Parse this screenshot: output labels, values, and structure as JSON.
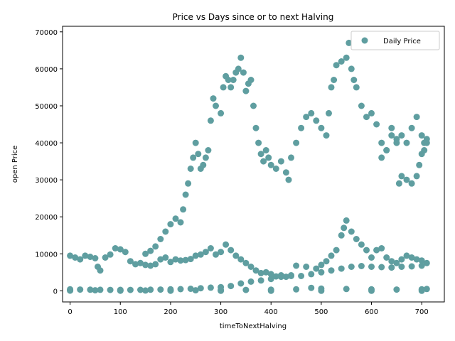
{
  "chart_data": {
    "type": "scatter",
    "title": "Price vs Days since or to next Halving",
    "xlabel": "timeToNextHalving",
    "ylabel": "open Price",
    "xlim": [
      -15,
      745
    ],
    "ylim": [
      -3000,
      71500
    ],
    "xticks": [
      0,
      100,
      200,
      300,
      400,
      500,
      600,
      700
    ],
    "yticks": [
      0,
      10000,
      20000,
      30000,
      40000,
      50000,
      60000,
      70000
    ],
    "grid": false,
    "legend_position": "top-right",
    "colors": {
      "marker": "#5f9ea0"
    },
    "series": [
      {
        "name": "Daily Price",
        "points": [
          [
            0,
            9500
          ],
          [
            10,
            9000
          ],
          [
            20,
            8500
          ],
          [
            30,
            9500
          ],
          [
            40,
            9200
          ],
          [
            50,
            8800
          ],
          [
            55,
            6500
          ],
          [
            60,
            5500
          ],
          [
            70,
            9000
          ],
          [
            80,
            9800
          ],
          [
            90,
            11500
          ],
          [
            100,
            11200
          ],
          [
            110,
            10500
          ],
          [
            120,
            8000
          ],
          [
            130,
            7200
          ],
          [
            140,
            7500
          ],
          [
            150,
            7000
          ],
          [
            160,
            6800
          ],
          [
            170,
            7200
          ],
          [
            180,
            8500
          ],
          [
            190,
            9000
          ],
          [
            200,
            7800
          ],
          [
            210,
            8500
          ],
          [
            220,
            8200
          ],
          [
            230,
            8300
          ],
          [
            240,
            8600
          ],
          [
            250,
            9500
          ],
          [
            260,
            9800
          ],
          [
            270,
            10500
          ],
          [
            280,
            11500
          ],
          [
            290,
            9800
          ],
          [
            300,
            10500
          ],
          [
            310,
            12500
          ],
          [
            320,
            11000
          ],
          [
            330,
            9500
          ],
          [
            340,
            8500
          ],
          [
            350,
            7500
          ],
          [
            360,
            6500
          ],
          [
            370,
            5500
          ],
          [
            380,
            4800
          ],
          [
            390,
            5000
          ],
          [
            400,
            4500
          ],
          [
            410,
            3900
          ],
          [
            420,
            4200
          ],
          [
            430,
            3800
          ],
          [
            440,
            4000
          ],
          [
            0,
            400
          ],
          [
            20,
            350
          ],
          [
            40,
            300
          ],
          [
            60,
            280
          ],
          [
            80,
            250
          ],
          [
            100,
            260
          ],
          [
            120,
            250
          ],
          [
            140,
            270
          ],
          [
            160,
            300
          ],
          [
            180,
            350
          ],
          [
            200,
            400
          ],
          [
            220,
            450
          ],
          [
            240,
            550
          ],
          [
            260,
            700
          ],
          [
            280,
            850
          ],
          [
            300,
            1000
          ],
          [
            320,
            1300
          ],
          [
            340,
            2000
          ],
          [
            360,
            2500
          ],
          [
            380,
            2800
          ],
          [
            400,
            3200
          ],
          [
            420,
            3800
          ],
          [
            440,
            4200
          ],
          [
            460,
            4000
          ],
          [
            480,
            4500
          ],
          [
            500,
            5000
          ],
          [
            520,
            5500
          ],
          [
            540,
            6000
          ],
          [
            560,
            6500
          ],
          [
            580,
            6700
          ],
          [
            600,
            6500
          ],
          [
            620,
            6400
          ],
          [
            640,
            6300
          ],
          [
            660,
            6500
          ],
          [
            680,
            6600
          ],
          [
            700,
            6800
          ],
          [
            0,
            200
          ],
          [
            50,
            150
          ],
          [
            100,
            120
          ],
          [
            150,
            100
          ],
          [
            200,
            110
          ],
          [
            250,
            150
          ],
          [
            300,
            200
          ],
          [
            350,
            250
          ],
          [
            400,
            300
          ],
          [
            450,
            400
          ],
          [
            480,
            800
          ],
          [
            500,
            600
          ],
          [
            550,
            500
          ],
          [
            600,
            400
          ],
          [
            650,
            350
          ],
          [
            700,
            400
          ],
          [
            710,
            500
          ],
          [
            0,
            50
          ],
          [
            100,
            40
          ],
          [
            200,
            30
          ],
          [
            300,
            20
          ],
          [
            400,
            15
          ],
          [
            500,
            10
          ],
          [
            600,
            8
          ],
          [
            700,
            6
          ],
          [
            450,
            6800
          ],
          [
            470,
            6500
          ],
          [
            490,
            6000
          ],
          [
            500,
            7000
          ],
          [
            510,
            8000
          ],
          [
            520,
            9500
          ],
          [
            530,
            11000
          ],
          [
            540,
            15000
          ],
          [
            545,
            17000
          ],
          [
            550,
            19000
          ],
          [
            560,
            16000
          ],
          [
            570,
            14000
          ],
          [
            580,
            12500
          ],
          [
            590,
            11000
          ],
          [
            600,
            9000
          ],
          [
            610,
            11000
          ],
          [
            620,
            11500
          ],
          [
            630,
            9000
          ],
          [
            640,
            8000
          ],
          [
            650,
            7500
          ],
          [
            660,
            8500
          ],
          [
            670,
            9500
          ],
          [
            680,
            9000
          ],
          [
            690,
            8500
          ],
          [
            700,
            8200
          ],
          [
            710,
            7500
          ],
          [
            150,
            10000
          ],
          [
            160,
            10800
          ],
          [
            170,
            12000
          ],
          [
            180,
            14000
          ],
          [
            190,
            16000
          ],
          [
            200,
            18000
          ],
          [
            210,
            19500
          ],
          [
            220,
            18500
          ],
          [
            225,
            22000
          ],
          [
            230,
            26000
          ],
          [
            235,
            29000
          ],
          [
            240,
            33000
          ],
          [
            245,
            36000
          ],
          [
            250,
            40000
          ],
          [
            255,
            37000
          ],
          [
            260,
            33000
          ],
          [
            265,
            34000
          ],
          [
            270,
            36000
          ],
          [
            275,
            38000
          ],
          [
            280,
            46000
          ],
          [
            285,
            52000
          ],
          [
            290,
            50000
          ],
          [
            300,
            48000
          ],
          [
            305,
            55000
          ],
          [
            310,
            58000
          ],
          [
            315,
            57000
          ],
          [
            320,
            55000
          ],
          [
            325,
            57000
          ],
          [
            330,
            59000
          ],
          [
            335,
            60000
          ],
          [
            340,
            63000
          ],
          [
            345,
            59000
          ],
          [
            350,
            54000
          ],
          [
            355,
            56000
          ],
          [
            360,
            57000
          ],
          [
            365,
            50000
          ],
          [
            370,
            44000
          ],
          [
            375,
            40000
          ],
          [
            380,
            37000
          ],
          [
            385,
            35000
          ],
          [
            390,
            38000
          ],
          [
            395,
            36000
          ],
          [
            400,
            34000
          ],
          [
            410,
            33000
          ],
          [
            420,
            35000
          ],
          [
            430,
            32000
          ],
          [
            435,
            30000
          ],
          [
            440,
            36000
          ],
          [
            450,
            40000
          ],
          [
            460,
            44000
          ],
          [
            470,
            47000
          ],
          [
            480,
            48000
          ],
          [
            490,
            46000
          ],
          [
            500,
            44000
          ],
          [
            510,
            42000
          ],
          [
            515,
            48000
          ],
          [
            520,
            55000
          ],
          [
            525,
            57000
          ],
          [
            530,
            61000
          ],
          [
            540,
            62000
          ],
          [
            550,
            63000
          ],
          [
            555,
            67000
          ],
          [
            560,
            60000
          ],
          [
            565,
            57000
          ],
          [
            570,
            55000
          ],
          [
            580,
            50000
          ],
          [
            590,
            47000
          ],
          [
            600,
            48000
          ],
          [
            610,
            45000
          ],
          [
            620,
            40000
          ],
          [
            630,
            38000
          ],
          [
            640,
            42000
          ],
          [
            650,
            41000
          ],
          [
            660,
            42000
          ],
          [
            670,
            40000
          ],
          [
            680,
            44000
          ],
          [
            690,
            47000
          ],
          [
            700,
            42000
          ],
          [
            705,
            40000
          ],
          [
            710,
            40000
          ],
          [
            620,
            36000
          ],
          [
            630,
            38000
          ],
          [
            640,
            44000
          ],
          [
            650,
            40000
          ],
          [
            655,
            29000
          ],
          [
            660,
            31000
          ],
          [
            670,
            30000
          ],
          [
            680,
            29000
          ],
          [
            690,
            31000
          ],
          [
            695,
            34000
          ],
          [
            700,
            37000
          ],
          [
            705,
            38000
          ],
          [
            710,
            41000
          ]
        ]
      }
    ]
  }
}
